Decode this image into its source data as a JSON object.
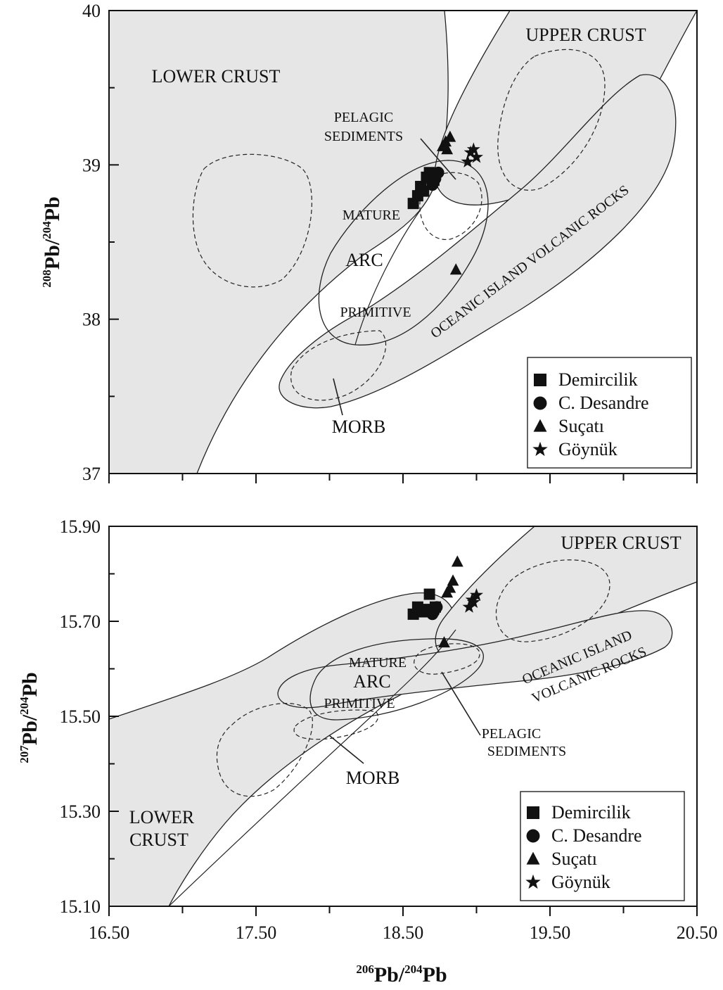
{
  "chart_data": [
    {
      "type": "scatter",
      "panel": "top",
      "xlabel": "",
      "ylabel": {
        "n1": "208",
        "t1": "Pb/",
        "n2": "204",
        "t2": "Pb"
      },
      "xlim": [
        16.5,
        20.5
      ],
      "ylim": [
        37,
        40
      ],
      "yticks": [
        "37",
        "38",
        "39",
        "40"
      ],
      "xticks": [],
      "grid": false,
      "legend_position": "bottom-right",
      "fields": {
        "lower_crust": "LOWER CRUST",
        "upper_crust": "UPPER CRUST",
        "pelagic": [
          "PELAGIC",
          "SEDIMENTS"
        ],
        "mature": "MATURE",
        "arc": "ARC",
        "primitive": "PRIMITIVE",
        "ocean_island": "OCEANIC ISLAND VOLCANIC ROCKS",
        "morb": "MORB"
      },
      "series": [
        {
          "name": "Demircilik",
          "marker": "square",
          "points": [
            [
              18.57,
              38.75
            ],
            [
              18.6,
              38.8
            ],
            [
              18.62,
              38.86
            ],
            [
              18.66,
              38.92
            ],
            [
              18.68,
              38.95
            ],
            [
              18.71,
              38.9
            ],
            [
              18.64,
              38.83
            ]
          ]
        },
        {
          "name": "C. Desandre",
          "marker": "circle",
          "points": [
            [
              18.7,
              38.87
            ],
            [
              18.74,
              38.95
            ],
            [
              18.72,
              38.91
            ]
          ]
        },
        {
          "name": "Suçatı",
          "marker": "triangle",
          "points": [
            [
              18.86,
              38.32
            ],
            [
              18.77,
              39.12
            ],
            [
              18.79,
              39.15
            ],
            [
              18.82,
              39.18
            ],
            [
              18.8,
              39.1
            ]
          ]
        },
        {
          "name": "Göynük",
          "marker": "star",
          "points": [
            [
              18.94,
              39.02
            ],
            [
              18.96,
              39.08
            ],
            [
              18.98,
              39.1
            ],
            [
              19.0,
              39.05
            ]
          ]
        }
      ]
    },
    {
      "type": "scatter",
      "panel": "bottom",
      "xlabel": {
        "n1": "206",
        "t1": "Pb/",
        "n2": "204",
        "t2": "Pb"
      },
      "ylabel": {
        "n1": "207",
        "t1": "Pb/",
        "n2": "204",
        "t2": "Pb"
      },
      "xlim": [
        16.5,
        20.5
      ],
      "ylim": [
        15.1,
        15.9
      ],
      "yticks": [
        "15.10",
        "15.30",
        "15.50",
        "15.70",
        "15.90"
      ],
      "xticks": [
        "16.50",
        "17.50",
        "18.50",
        "19.50",
        "20.50"
      ],
      "grid": false,
      "legend_position": "bottom-right",
      "fields": {
        "lower_crust": [
          "LOWER",
          "CRUST"
        ],
        "upper_crust": "UPPER CRUST",
        "pelagic": [
          "PELAGIC",
          "SEDIMENTS"
        ],
        "mature": "MATURE",
        "arc": "ARC",
        "primitive": "PRIMITIVE",
        "ocean_island": [
          "OCEANIC ISLAND",
          "VOLCANIC ROCKS"
        ],
        "morb": "MORB"
      },
      "series": [
        {
          "name": "Demircilik",
          "marker": "square",
          "points": [
            [
              18.57,
              15.715
            ],
            [
              18.6,
              15.73
            ],
            [
              18.63,
              15.72
            ],
            [
              18.66,
              15.725
            ],
            [
              18.68,
              15.757
            ],
            [
              18.72,
              15.73
            ]
          ]
        },
        {
          "name": "C. Desandre",
          "marker": "circle",
          "points": [
            [
              18.7,
              15.715
            ],
            [
              18.73,
              15.73
            ],
            [
              18.71,
              15.72
            ]
          ]
        },
        {
          "name": "Suçatı",
          "marker": "triangle",
          "points": [
            [
              18.87,
              15.825
            ],
            [
              18.82,
              15.77
            ],
            [
              18.8,
              15.76
            ],
            [
              18.84,
              15.785
            ],
            [
              18.78,
              15.655
            ]
          ]
        },
        {
          "name": "Göynük",
          "marker": "star",
          "points": [
            [
              18.95,
              15.73
            ],
            [
              18.97,
              15.745
            ],
            [
              19.0,
              15.755
            ],
            [
              18.98,
              15.74
            ]
          ]
        }
      ]
    }
  ]
}
